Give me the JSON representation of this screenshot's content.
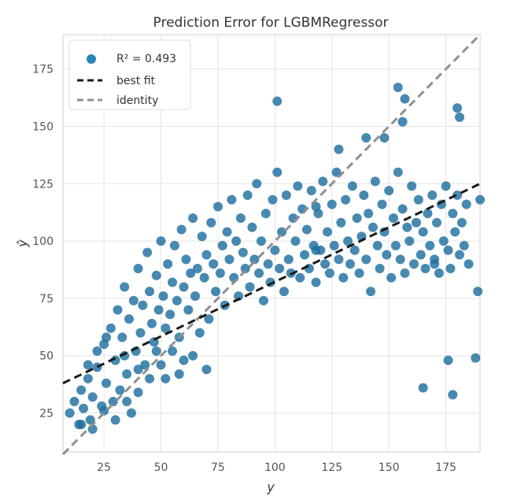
{
  "chart_data": {
    "type": "scatter",
    "title": "Prediction Error for LGBMRegressor",
    "xlabel": "y",
    "ylabel": "ŷ",
    "xlim": [
      7,
      190
    ],
    "ylim": [
      8,
      190
    ],
    "x_ticks": [
      "25",
      "50",
      "75",
      "100",
      "125",
      "150",
      "175"
    ],
    "y_ticks": [
      "25",
      "50",
      "75",
      "100",
      "125",
      "150",
      "175"
    ],
    "grid": true,
    "legend_position": "top-left",
    "legend": {
      "r2_label": "R² = 0.493",
      "best_fit_label": "best fit",
      "identity_label": "identity"
    },
    "best_fit_line": {
      "x": [
        7,
        190
      ],
      "y": [
        38,
        125
      ]
    },
    "identity_line": {
      "x": [
        7,
        190
      ],
      "y": [
        7,
        190
      ]
    },
    "series": [
      {
        "color": "#1f6f9f",
        "points": [
          [
            10,
            25
          ],
          [
            12,
            30
          ],
          [
            14,
            20
          ],
          [
            15,
            35
          ],
          [
            16,
            27
          ],
          [
            18,
            40
          ],
          [
            19,
            22
          ],
          [
            20,
            32
          ],
          [
            22,
            45
          ],
          [
            24,
            28
          ],
          [
            25,
            55
          ],
          [
            26,
            38
          ],
          [
            28,
            62
          ],
          [
            29,
            30
          ],
          [
            30,
            48
          ],
          [
            31,
            70
          ],
          [
            32,
            35
          ],
          [
            33,
            58
          ],
          [
            34,
            80
          ],
          [
            35,
            42
          ],
          [
            36,
            66
          ],
          [
            37,
            25
          ],
          [
            38,
            74
          ],
          [
            39,
            52
          ],
          [
            40,
            88
          ],
          [
            41,
            60
          ],
          [
            42,
            72
          ],
          [
            43,
            46
          ],
          [
            44,
            95
          ],
          [
            45,
            78
          ],
          [
            46,
            64
          ],
          [
            47,
            56
          ],
          [
            48,
            85
          ],
          [
            49,
            70
          ],
          [
            50,
            100
          ],
          [
            51,
            76
          ],
          [
            52,
            62
          ],
          [
            53,
            90
          ],
          [
            54,
            68
          ],
          [
            55,
            82
          ],
          [
            56,
            98
          ],
          [
            57,
            74
          ],
          [
            58,
            58
          ],
          [
            59,
            105
          ],
          [
            60,
            80
          ],
          [
            61,
            92
          ],
          [
            62,
            70
          ],
          [
            63,
            86
          ],
          [
            64,
            110
          ],
          [
            65,
            76
          ],
          [
            66,
            88
          ],
          [
            67,
            60
          ],
          [
            68,
            102
          ],
          [
            69,
            84
          ],
          [
            70,
            94
          ],
          [
            71,
            66
          ],
          [
            72,
            108
          ],
          [
            73,
            90
          ],
          [
            74,
            78
          ],
          [
            75,
            115
          ],
          [
            76,
            86
          ],
          [
            77,
            98
          ],
          [
            78,
            72
          ],
          [
            79,
            104
          ],
          [
            80,
            92
          ],
          [
            81,
            118
          ],
          [
            82,
            84
          ],
          [
            83,
            100
          ],
          [
            84,
            76
          ],
          [
            85,
            110
          ],
          [
            86,
            95
          ],
          [
            87,
            88
          ],
          [
            88,
            120
          ],
          [
            89,
            80
          ],
          [
            90,
            106
          ],
          [
            91,
            92
          ],
          [
            92,
            125
          ],
          [
            93,
            86
          ],
          [
            94,
            100
          ],
          [
            95,
            74
          ],
          [
            96,
            112
          ],
          [
            97,
            90
          ],
          [
            98,
            82
          ],
          [
            99,
            118
          ],
          [
            100,
            96
          ],
          [
            101,
            130
          ],
          [
            102,
            88
          ],
          [
            103,
            104
          ],
          [
            104,
            78
          ],
          [
            105,
            120
          ],
          [
            106,
            92
          ],
          [
            107,
            86
          ],
          [
            108,
            110
          ],
          [
            109,
            100
          ],
          [
            110,
            124
          ],
          [
            111,
            84
          ],
          [
            112,
            114
          ],
          [
            113,
            94
          ],
          [
            114,
            105
          ],
          [
            115,
            88
          ],
          [
            116,
            122
          ],
          [
            117,
            98
          ],
          [
            118,
            82
          ],
          [
            119,
            112
          ],
          [
            120,
            96
          ],
          [
            121,
            126
          ],
          [
            122,
            90
          ],
          [
            123,
            104
          ],
          [
            124,
            86
          ],
          [
            125,
            116
          ],
          [
            126,
            98
          ],
          [
            127,
            130
          ],
          [
            128,
            92
          ],
          [
            129,
            108
          ],
          [
            130,
            84
          ],
          [
            131,
            118
          ],
          [
            132,
            100
          ],
          [
            133,
            90
          ],
          [
            134,
            124
          ],
          [
            135,
            96
          ],
          [
            136,
            110
          ],
          [
            137,
            86
          ],
          [
            138,
            102
          ],
          [
            139,
            120
          ],
          [
            140,
            92
          ],
          [
            141,
            112
          ],
          [
            142,
            78
          ],
          [
            143,
            106
          ],
          [
            144,
            126
          ],
          [
            145,
            98
          ],
          [
            146,
            88
          ],
          [
            147,
            116
          ],
          [
            148,
            104
          ],
          [
            149,
            94
          ],
          [
            150,
            122
          ],
          [
            151,
            84
          ],
          [
            152,
            110
          ],
          [
            153,
            98
          ],
          [
            154,
            130
          ],
          [
            155,
            92
          ],
          [
            156,
            114
          ],
          [
            157,
            86
          ],
          [
            158,
            106
          ],
          [
            159,
            100
          ],
          [
            160,
            124
          ],
          [
            161,
            90
          ],
          [
            162,
            108
          ],
          [
            163,
            118
          ],
          [
            164,
            94
          ],
          [
            165,
            104
          ],
          [
            166,
            88
          ],
          [
            167,
            112
          ],
          [
            168,
            98
          ],
          [
            169,
            120
          ],
          [
            170,
            92
          ],
          [
            171,
            108
          ],
          [
            172,
            86
          ],
          [
            173,
            116
          ],
          [
            174,
            100
          ],
          [
            175,
            124
          ],
          [
            176,
            96
          ],
          [
            177,
            88
          ],
          [
            178,
            112
          ],
          [
            179,
            104
          ],
          [
            180,
            120
          ],
          [
            181,
            94
          ],
          [
            182,
            108
          ],
          [
            183,
            98
          ],
          [
            184,
            116
          ],
          [
            185,
            90
          ],
          [
            101,
            161
          ],
          [
            154,
            167
          ],
          [
            157,
            162
          ],
          [
            180,
            158
          ],
          [
            181,
            154
          ],
          [
            118,
            115
          ],
          [
            118,
            96
          ],
          [
            140,
            145
          ],
          [
            156,
            152
          ],
          [
            170,
            90
          ],
          [
            165,
            36
          ],
          [
            178,
            33
          ],
          [
            176,
            48
          ],
          [
            188,
            49
          ],
          [
            190,
            118
          ],
          [
            189,
            78
          ],
          [
            148,
            145
          ],
          [
            128,
            140
          ],
          [
            15,
            20
          ],
          [
            20,
            18
          ],
          [
            25,
            26
          ],
          [
            30,
            22
          ],
          [
            35,
            30
          ],
          [
            40,
            34
          ],
          [
            45,
            40
          ],
          [
            50,
            46
          ],
          [
            55,
            52
          ],
          [
            60,
            48
          ],
          [
            18,
            46
          ],
          [
            22,
            52
          ],
          [
            26,
            58
          ],
          [
            34,
            50
          ],
          [
            40,
            44
          ],
          [
            48,
            52
          ],
          [
            52,
            40
          ],
          [
            58,
            42
          ],
          [
            64,
            50
          ],
          [
            70,
            44
          ]
        ]
      }
    ]
  }
}
